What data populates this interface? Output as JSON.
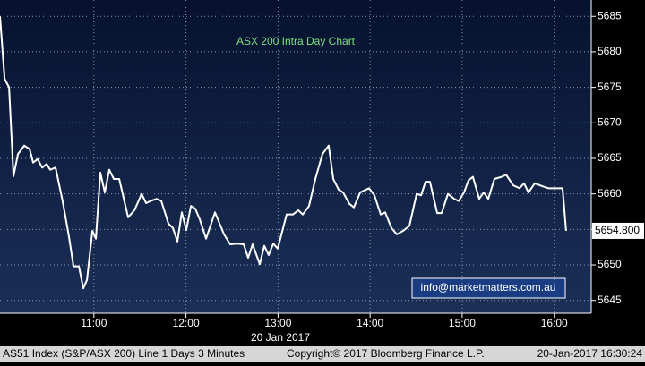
{
  "chart_data": {
    "type": "line",
    "title": "ASX 200 Intra Day Chart",
    "x": [
      598.8,
      601.8,
      604.7,
      607.6,
      610.5,
      614.6,
      618.1,
      620.4,
      623.3,
      626.3,
      629.2,
      631.5,
      635.0,
      639.7,
      643.8,
      646.7,
      650.2,
      653.1,
      655.5,
      659.0,
      661.3,
      664.2,
      667.1,
      670.0,
      673.0,
      676.5,
      682.3,
      686.4,
      691.1,
      694.0,
      696.9,
      701.0,
      703.9,
      708.6,
      711.5,
      714.4,
      717.3,
      720.2,
      723.2,
      726.1,
      729.0,
      733.1,
      738.9,
      744.8,
      748.8,
      753.5,
      757.6,
      760.5,
      763.4,
      768.1,
      771.0,
      773.9,
      776.9,
      779.8,
      785.6,
      789.7,
      793.2,
      796.1,
      800.2,
      804.3,
      808.9,
      813.0,
      816.0,
      819.5,
      822.4,
      826.5,
      829.4,
      833.5,
      839.3,
      842.8,
      846.9,
      849.8,
      853.9,
      857.4,
      861.5,
      865.6,
      870.3,
      873.2,
      876.1,
      879.0,
      883.7,
      886.6,
      890.7,
      894.8,
      897.7,
      901.2,
      904.1,
      907.0,
      911.1,
      914.0,
      917.0,
      921.0,
      925.7,
      928.6,
      933.3,
      937.4,
      940.3,
      943.2,
      947.3,
      952.0,
      956.1,
      960.7,
      965.4,
      967.7
    ],
    "series": [
      {
        "color": "#ffffff",
        "values": [
          5685,
          5676.2,
          5675,
          5662.5,
          5665.6,
          5666.8,
          5666.3,
          5664.4,
          5664.9,
          5663.7,
          5664.2,
          5663.4,
          5663.7,
          5658.9,
          5653.9,
          5649.8,
          5649.8,
          5646.7,
          5647.9,
          5654.8,
          5653.7,
          5663,
          5660.2,
          5663.4,
          5662.1,
          5662.1,
          5656.7,
          5657.7,
          5660,
          5658.7,
          5659,
          5659.3,
          5659,
          5655.8,
          5655.2,
          5653.3,
          5657.4,
          5654.9,
          5658.3,
          5657.9,
          5656.4,
          5653.7,
          5657.4,
          5654.3,
          5652.9,
          5653,
          5652.9,
          5651,
          5652.9,
          5650.1,
          5652.7,
          5651.4,
          5653,
          5652.3,
          5657.1,
          5657.1,
          5657.7,
          5657.1,
          5658.3,
          5662.1,
          5665.6,
          5666.8,
          5662.1,
          5660.6,
          5660.2,
          5658.6,
          5658.1,
          5660.2,
          5660.8,
          5659.8,
          5657.1,
          5657.4,
          5655.2,
          5654.3,
          5654.8,
          5655.5,
          5660,
          5659.8,
          5661.7,
          5661.7,
          5657.3,
          5657.3,
          5660,
          5659.3,
          5659,
          5660.2,
          5661.9,
          5662.4,
          5659.3,
          5660.2,
          5659.3,
          5662.1,
          5662.4,
          5662.7,
          5661.2,
          5660.8,
          5661.5,
          5660.2,
          5661.5,
          5661.1,
          5660.8,
          5660.8,
          5660.8,
          5654.8
        ]
      }
    ],
    "xlim": [
      598.8,
      984.1
    ],
    "xticks": [
      {
        "value": 660,
        "label": "11:00"
      },
      {
        "value": 720,
        "label": "12:00"
      },
      {
        "value": 780,
        "label": "13:00"
      },
      {
        "value": 840,
        "label": "14:00"
      },
      {
        "value": 900,
        "label": "15:00"
      },
      {
        "value": 960,
        "label": "16:00"
      }
    ],
    "x_label": "20 Jan 2017",
    "ylim": [
      5643.2,
      5687.3
    ],
    "yticks": [
      5645,
      5650,
      5655,
      5660,
      5665,
      5670,
      5675,
      5680,
      5685
    ],
    "grid": true,
    "last_price": {
      "value": 5654.8,
      "label": "5654.800"
    },
    "annotation": "info@marketmatters.com.au",
    "footer": [
      "AS51 Index (S&P/ASX 200) Line 1 Days 3 Minutes",
      "Copyright© 2017 Bloomberg Finance L.P.",
      "20-Jan-2017 16:30:24"
    ]
  }
}
